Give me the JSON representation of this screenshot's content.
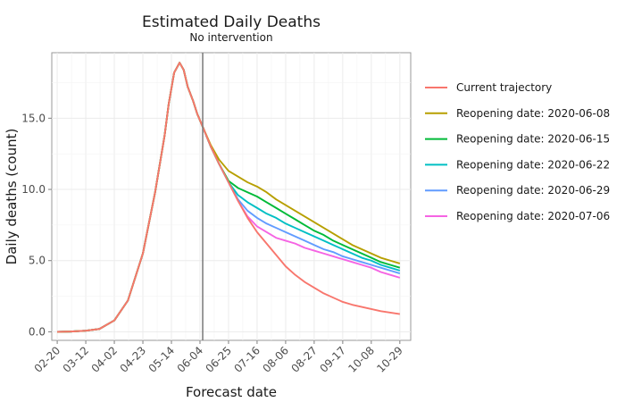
{
  "chart_data": {
    "type": "line",
    "title": "Estimated Daily Deaths",
    "subtitle": "No intervention",
    "xlabel": "Forecast date",
    "ylabel": "Daily deaths (count)",
    "x_ticks": [
      "02-20",
      "03-12",
      "04-02",
      "04-23",
      "05-14",
      "06-04",
      "06-25",
      "07-16",
      "08-06",
      "08-27",
      "09-17",
      "10-08",
      "10-29"
    ],
    "y_ticks": [
      "0.0",
      "5.0",
      "10.0",
      "15.0"
    ],
    "xlim": [
      "2020-02-16",
      "2020-11-06"
    ],
    "ylim": [
      -0.6,
      19.6
    ],
    "grid": true,
    "legend_position": "right",
    "vertical_marker": "2020-06-06",
    "x": [
      "2020-02-20",
      "2020-03-01",
      "2020-03-12",
      "2020-03-22",
      "2020-04-02",
      "2020-04-12",
      "2020-04-23",
      "2020-05-02",
      "2020-05-09",
      "2020-05-12",
      "2020-05-16",
      "2020-05-20",
      "2020-05-23",
      "2020-05-26",
      "2020-05-30",
      "2020-06-02",
      "2020-06-06",
      "2020-06-12",
      "2020-06-18",
      "2020-06-25",
      "2020-07-02",
      "2020-07-09",
      "2020-07-16",
      "2020-07-23",
      "2020-07-30",
      "2020-08-06",
      "2020-08-13",
      "2020-08-20",
      "2020-08-27",
      "2020-09-03",
      "2020-09-10",
      "2020-09-17",
      "2020-09-24",
      "2020-10-01",
      "2020-10-08",
      "2020-10-15",
      "2020-10-22",
      "2020-10-29"
    ],
    "series": [
      {
        "name": "Current trajectory",
        "color": "#f8766d",
        "values": [
          0.0,
          0.02,
          0.08,
          0.2,
          0.8,
          2.2,
          5.5,
          9.8,
          13.8,
          16.0,
          18.2,
          18.9,
          18.4,
          17.2,
          16.2,
          15.3,
          14.4,
          13.0,
          11.8,
          10.5,
          9.2,
          8.0,
          7.0,
          6.2,
          5.4,
          4.6,
          4.0,
          3.5,
          3.1,
          2.7,
          2.4,
          2.1,
          1.9,
          1.75,
          1.6,
          1.45,
          1.35,
          1.25
        ]
      },
      {
        "name": "Reopening date: 2020-06-08",
        "color": "#b79f00",
        "values": [
          0.0,
          0.02,
          0.08,
          0.2,
          0.8,
          2.2,
          5.5,
          9.8,
          13.8,
          16.0,
          18.2,
          18.9,
          18.4,
          17.2,
          16.2,
          15.3,
          14.4,
          13.1,
          12.1,
          11.3,
          10.9,
          10.5,
          10.2,
          9.8,
          9.3,
          8.9,
          8.5,
          8.1,
          7.7,
          7.3,
          6.9,
          6.5,
          6.1,
          5.8,
          5.5,
          5.2,
          5.0,
          4.8
        ]
      },
      {
        "name": "Reopening date: 2020-06-15",
        "color": "#00ba38",
        "values": [
          0.0,
          0.02,
          0.08,
          0.2,
          0.8,
          2.2,
          5.5,
          9.8,
          13.8,
          16.0,
          18.2,
          18.9,
          18.4,
          17.2,
          16.2,
          15.3,
          14.4,
          13.0,
          11.8,
          10.6,
          10.1,
          9.8,
          9.5,
          9.1,
          8.7,
          8.3,
          7.9,
          7.5,
          7.1,
          6.8,
          6.4,
          6.1,
          5.8,
          5.5,
          5.2,
          4.9,
          4.7,
          4.5
        ]
      },
      {
        "name": "Reopening date: 2020-06-22",
        "color": "#00bfc4",
        "values": [
          0.0,
          0.02,
          0.08,
          0.2,
          0.8,
          2.2,
          5.5,
          9.8,
          13.8,
          16.0,
          18.2,
          18.9,
          18.4,
          17.2,
          16.2,
          15.3,
          14.4,
          13.0,
          11.8,
          10.5,
          9.6,
          9.1,
          8.7,
          8.3,
          8.0,
          7.6,
          7.3,
          7.0,
          6.7,
          6.4,
          6.1,
          5.8,
          5.5,
          5.2,
          5.0,
          4.7,
          4.5,
          4.3
        ]
      },
      {
        "name": "Reopening date: 2020-06-29",
        "color": "#619cff",
        "values": [
          0.0,
          0.02,
          0.08,
          0.2,
          0.8,
          2.2,
          5.5,
          9.8,
          13.8,
          16.0,
          18.2,
          18.9,
          18.4,
          17.2,
          16.2,
          15.3,
          14.4,
          13.0,
          11.8,
          10.5,
          9.3,
          8.5,
          8.0,
          7.6,
          7.3,
          7.0,
          6.7,
          6.4,
          6.1,
          5.8,
          5.6,
          5.3,
          5.1,
          4.9,
          4.7,
          4.5,
          4.3,
          4.1
        ]
      },
      {
        "name": "Reopening date: 2020-07-06",
        "color": "#f564e3",
        "values": [
          0.0,
          0.02,
          0.08,
          0.2,
          0.8,
          2.2,
          5.5,
          9.8,
          13.8,
          16.0,
          18.2,
          18.9,
          18.4,
          17.2,
          16.2,
          15.3,
          14.4,
          13.0,
          11.8,
          10.5,
          9.2,
          8.1,
          7.4,
          7.0,
          6.6,
          6.4,
          6.2,
          5.9,
          5.7,
          5.5,
          5.3,
          5.1,
          4.9,
          4.7,
          4.5,
          4.2,
          4.0,
          3.8
        ]
      }
    ]
  }
}
